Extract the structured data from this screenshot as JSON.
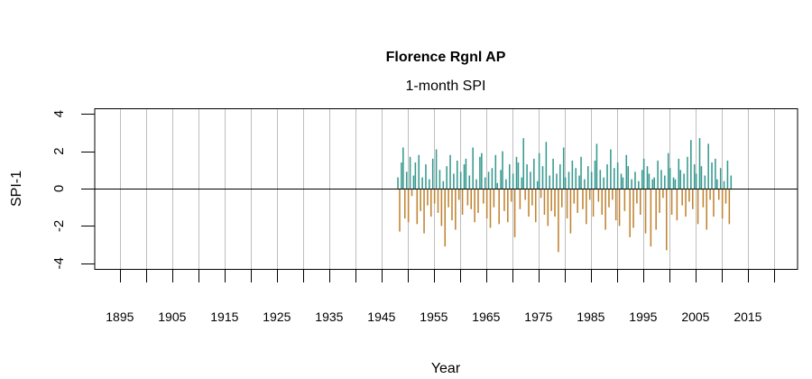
{
  "chart_data": {
    "type": "bar",
    "title": "Florence Rgnl AP",
    "subtitle": "1-month SPI",
    "xlabel": "Year",
    "ylabel": "SPI-1",
    "xlim": [
      1890.2,
      2024.5
    ],
    "ylim": [
      -4.3,
      4.3
    ],
    "x_ticks": [
      1895,
      1905,
      1915,
      1925,
      1935,
      1945,
      1955,
      1965,
      1975,
      1985,
      1995,
      2005,
      2015
    ],
    "x_minor_ticks_every": 5,
    "y_ticks": [
      4,
      2,
      0,
      -2,
      -4
    ],
    "grid": "vertical, every 5 years",
    "colors": {
      "positive": "#35998f",
      "negative": "#c0832f",
      "grid": "#bebebe",
      "zero_line": "#000000"
    },
    "x_start": 1948.0,
    "x_step": 0.3333,
    "values": [
      0.6,
      -2.3,
      1.4,
      2.2,
      -1.6,
      0.9,
      -1.8,
      1.7,
      -0.4,
      0.7,
      1.4,
      -1.9,
      1.8,
      -1.2,
      0.6,
      -2.4,
      1.3,
      -0.9,
      0.5,
      -1.5,
      1.6,
      -0.8,
      2.1,
      -1.3,
      1.0,
      -2.0,
      0.4,
      -3.1,
      1.2,
      -1.0,
      1.8,
      -1.7,
      0.8,
      -2.2,
      1.5,
      -0.6,
      0.9,
      -1.4,
      1.3,
      1.6,
      -0.9,
      0.7,
      -1.1,
      2.2,
      -1.8,
      0.5,
      -1.3,
      1.7,
      1.9,
      -0.8,
      0.6,
      -1.6,
      0.9,
      -2.1,
      1.1,
      -1.0,
      1.8,
      0.3,
      -1.9,
      1.0,
      2.0,
      -1.2,
      0.5,
      -1.8,
      1.3,
      -0.7,
      0.8,
      -2.6,
      1.7,
      1.4,
      -1.1,
      0.6,
      2.7,
      -0.6,
      1.3,
      -1.5,
      0.9,
      -0.9,
      1.6,
      -1.8,
      0.4,
      1.9,
      -0.5,
      1.2,
      -1.4,
      2.5,
      -2.0,
      0.7,
      -1.2,
      1.6,
      -1.5,
      0.8,
      -3.4,
      1.3,
      -1.0,
      2.2,
      0.6,
      -1.6,
      0.9,
      -2.4,
      1.5,
      -0.8,
      1.1,
      -1.3,
      0.7,
      1.7,
      -1.1,
      0.5,
      -1.9,
      1.2,
      -0.6,
      0.9,
      -1.5,
      1.5,
      2.4,
      -0.7,
      1.0,
      -1.4,
      0.6,
      -2.2,
      1.3,
      -1.0,
      2.1,
      -0.6,
      1.1,
      -1.7,
      1.4,
      -2.0,
      0.8,
      0.6,
      -1.2,
      1.8,
      1.2,
      -2.6,
      0.5,
      -2.1,
      0.9,
      -0.8,
      0.4,
      -1.4,
      1.0,
      1.6,
      -2.4,
      1.2,
      0.8,
      -3.1,
      0.5,
      0.6,
      -2.2,
      1.5,
      -1.3,
      1.0,
      -0.5,
      0.7,
      -3.3,
      1.9,
      1.1,
      -1.4,
      0.6,
      0.5,
      -1.7,
      1.6,
      1.0,
      -0.9,
      0.8,
      -1.5,
      1.7,
      -0.7,
      2.6,
      -1.1,
      1.3,
      0.8,
      -1.9,
      2.7,
      1.2,
      -1.0,
      0.7,
      -2.2,
      2.4,
      -0.6,
      1.4,
      -1.5,
      1.6,
      0.5,
      -0.6,
      1.1,
      -1.6,
      0.4,
      -0.8,
      1.5,
      -1.9,
      0.7
    ]
  }
}
